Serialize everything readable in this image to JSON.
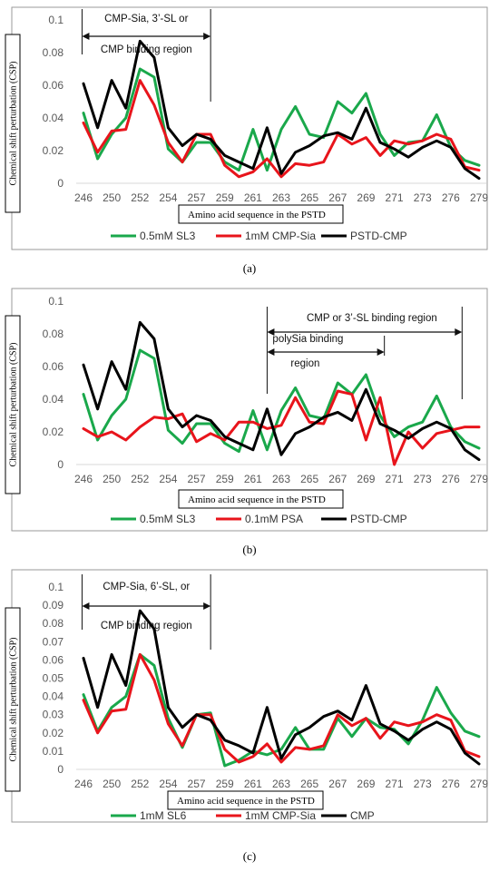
{
  "chart_data": [
    {
      "id": "a",
      "type": "line",
      "caption": "(a)",
      "ylabel": "Chemical shift perturbation (CSP)",
      "xlabel": "Amino acid sequence in the PSTD",
      "ylim": [
        0,
        0.1
      ],
      "yticks": [
        "0",
        "0.02",
        "0.04",
        "0.06",
        "0.08",
        "0.1"
      ],
      "x_tick_labels": [
        "246",
        "250",
        "252",
        "254",
        "257",
        "259",
        "261",
        "263",
        "265",
        "267",
        "269",
        "271",
        "273",
        "276",
        "279"
      ],
      "x_tick_positions": [
        0,
        2,
        4,
        6,
        8,
        10,
        12,
        14,
        16,
        18,
        20,
        22,
        24,
        26,
        28
      ],
      "n_points": 29,
      "series": [
        {
          "name": "0.5mM SL3",
          "color": "#1aa84b",
          "values": [
            0.043,
            0.015,
            0.03,
            0.04,
            0.07,
            0.065,
            0.021,
            0.013,
            0.025,
            0.025,
            0.013,
            0.008,
            0.033,
            0.008,
            0.033,
            0.047,
            0.03,
            0.028,
            0.05,
            0.043,
            0.055,
            0.03,
            0.017,
            0.025,
            0.026,
            0.042,
            0.022,
            0.014,
            0.011
          ]
        },
        {
          "name": "1mM CMP-Sia",
          "color": "#e8141b",
          "values": [
            0.037,
            0.019,
            0.032,
            0.033,
            0.063,
            0.048,
            0.025,
            0.013,
            0.03,
            0.03,
            0.011,
            0.004,
            0.007,
            0.015,
            0.004,
            0.012,
            0.011,
            0.013,
            0.03,
            0.024,
            0.028,
            0.017,
            0.026,
            0.024,
            0.026,
            0.03,
            0.027,
            0.01,
            0.008
          ]
        },
        {
          "name": "PSTD-CMP",
          "color": "#000000",
          "values": [
            0.061,
            0.034,
            0.063,
            0.046,
            0.087,
            0.077,
            0.034,
            0.023,
            0.03,
            0.027,
            0.017,
            0.013,
            0.009,
            0.034,
            0.006,
            0.019,
            0.023,
            0.029,
            0.031,
            0.027,
            0.046,
            0.025,
            0.021,
            0.016,
            0.022,
            0.026,
            0.022,
            0.009,
            0.003
          ]
        }
      ],
      "annotations": [
        {
          "text": [
            "CMP-Sia, 3’-SL or",
            "CMP binding region"
          ],
          "arrow_from": -0.1,
          "arrow_to": 9.0
        }
      ]
    },
    {
      "id": "b",
      "type": "line",
      "caption": "(b)",
      "ylabel": "Chemical shift perturbation (CSP)",
      "xlabel": "Amino acid sequence in the PSTD",
      "ylim": [
        0,
        0.1
      ],
      "yticks": [
        "0",
        "0.02",
        "0.04",
        "0.06",
        "0.08",
        "0.1"
      ],
      "x_tick_labels": [
        "246",
        "250",
        "252",
        "254",
        "257",
        "259",
        "261",
        "263",
        "265",
        "267",
        "269",
        "271",
        "273",
        "276",
        "279"
      ],
      "x_tick_positions": [
        0,
        2,
        4,
        6,
        8,
        10,
        12,
        14,
        16,
        18,
        20,
        22,
        24,
        26,
        28
      ],
      "n_points": 29,
      "series": [
        {
          "name": "0.5mM SL3",
          "color": "#1aa84b",
          "values": [
            0.043,
            0.015,
            0.03,
            0.04,
            0.07,
            0.065,
            0.021,
            0.013,
            0.025,
            0.025,
            0.013,
            0.008,
            0.033,
            0.009,
            0.033,
            0.047,
            0.03,
            0.028,
            0.05,
            0.043,
            0.055,
            0.03,
            0.017,
            0.023,
            0.026,
            0.042,
            0.023,
            0.014,
            0.01
          ]
        },
        {
          "name": "0.1mM PSA",
          "color": "#e8141b",
          "values": [
            0.022,
            0.017,
            0.02,
            0.015,
            0.023,
            0.029,
            0.028,
            0.031,
            0.014,
            0.019,
            0.015,
            0.026,
            0.026,
            0.022,
            0.024,
            0.041,
            0.026,
            0.025,
            0.045,
            0.043,
            0.015,
            0.041,
            0.0,
            0.02,
            0.01,
            0.019,
            0.021,
            0.023,
            0.023
          ]
        },
        {
          "name": "PSTD-CMP",
          "color": "#000000",
          "values": [
            0.061,
            0.034,
            0.063,
            0.046,
            0.087,
            0.077,
            0.034,
            0.023,
            0.03,
            0.027,
            0.017,
            0.013,
            0.009,
            0.034,
            0.006,
            0.019,
            0.023,
            0.029,
            0.032,
            0.027,
            0.046,
            0.025,
            0.021,
            0.016,
            0.022,
            0.026,
            0.022,
            0.009,
            0.003
          ]
        }
      ],
      "annotations": [
        {
          "text": [
            "CMP or 3’-SL binding region"
          ],
          "arrow_from": 13.0,
          "arrow_to": 26.8
        },
        {
          "text": [
            "polySia binding",
            "region"
          ],
          "arrow_from": 13.0,
          "arrow_to": 21.3
        }
      ]
    },
    {
      "id": "c",
      "type": "line",
      "caption": "(c)",
      "ylabel": "Chemical shift perturbation (CSP)",
      "xlabel": "Amino acid sequence in the PSTD",
      "ylim": [
        0,
        0.1
      ],
      "yticks": [
        "0",
        "0.01",
        "0.02",
        "0.03",
        "0.04",
        "0.05",
        "0.06",
        "0.07",
        "0.08",
        "0.09",
        "0.1"
      ],
      "x_tick_labels": [
        "246",
        "250",
        "252",
        "254",
        "257",
        "259",
        "261",
        "263",
        "265",
        "267",
        "269",
        "271",
        "273",
        "276",
        "279"
      ],
      "x_tick_positions": [
        0,
        2,
        4,
        6,
        8,
        10,
        12,
        14,
        16,
        18,
        20,
        22,
        24,
        26,
        28
      ],
      "n_points": 29,
      "series": [
        {
          "name": "1mM SL6",
          "color": "#1aa84b",
          "values": [
            0.041,
            0.021,
            0.034,
            0.04,
            0.063,
            0.057,
            0.028,
            0.012,
            0.03,
            0.031,
            0.002,
            0.005,
            0.01,
            0.008,
            0.011,
            0.023,
            0.011,
            0.011,
            0.028,
            0.018,
            0.028,
            0.023,
            0.022,
            0.014,
            0.027,
            0.045,
            0.031,
            0.021,
            0.018
          ]
        },
        {
          "name": "1mM CMP-Sia",
          "color": "#e8141b",
          "values": [
            0.038,
            0.02,
            0.032,
            0.033,
            0.063,
            0.049,
            0.025,
            0.013,
            0.03,
            0.03,
            0.011,
            0.004,
            0.007,
            0.014,
            0.004,
            0.012,
            0.011,
            0.013,
            0.03,
            0.024,
            0.028,
            0.017,
            0.026,
            0.024,
            0.026,
            0.03,
            0.027,
            0.01,
            0.007
          ]
        },
        {
          "name": "CMP",
          "color": "#000000",
          "values": [
            0.061,
            0.034,
            0.063,
            0.046,
            0.087,
            0.077,
            0.034,
            0.023,
            0.03,
            0.027,
            0.016,
            0.013,
            0.009,
            0.034,
            0.006,
            0.019,
            0.023,
            0.029,
            0.032,
            0.027,
            0.046,
            0.025,
            0.021,
            0.016,
            0.022,
            0.026,
            0.022,
            0.009,
            0.003
          ]
        }
      ],
      "annotations": [
        {
          "text": [
            "CMP-Sia, 6’-SL, or",
            "CMP binding region"
          ],
          "arrow_from": -0.1,
          "arrow_to": 9.0
        }
      ]
    }
  ]
}
